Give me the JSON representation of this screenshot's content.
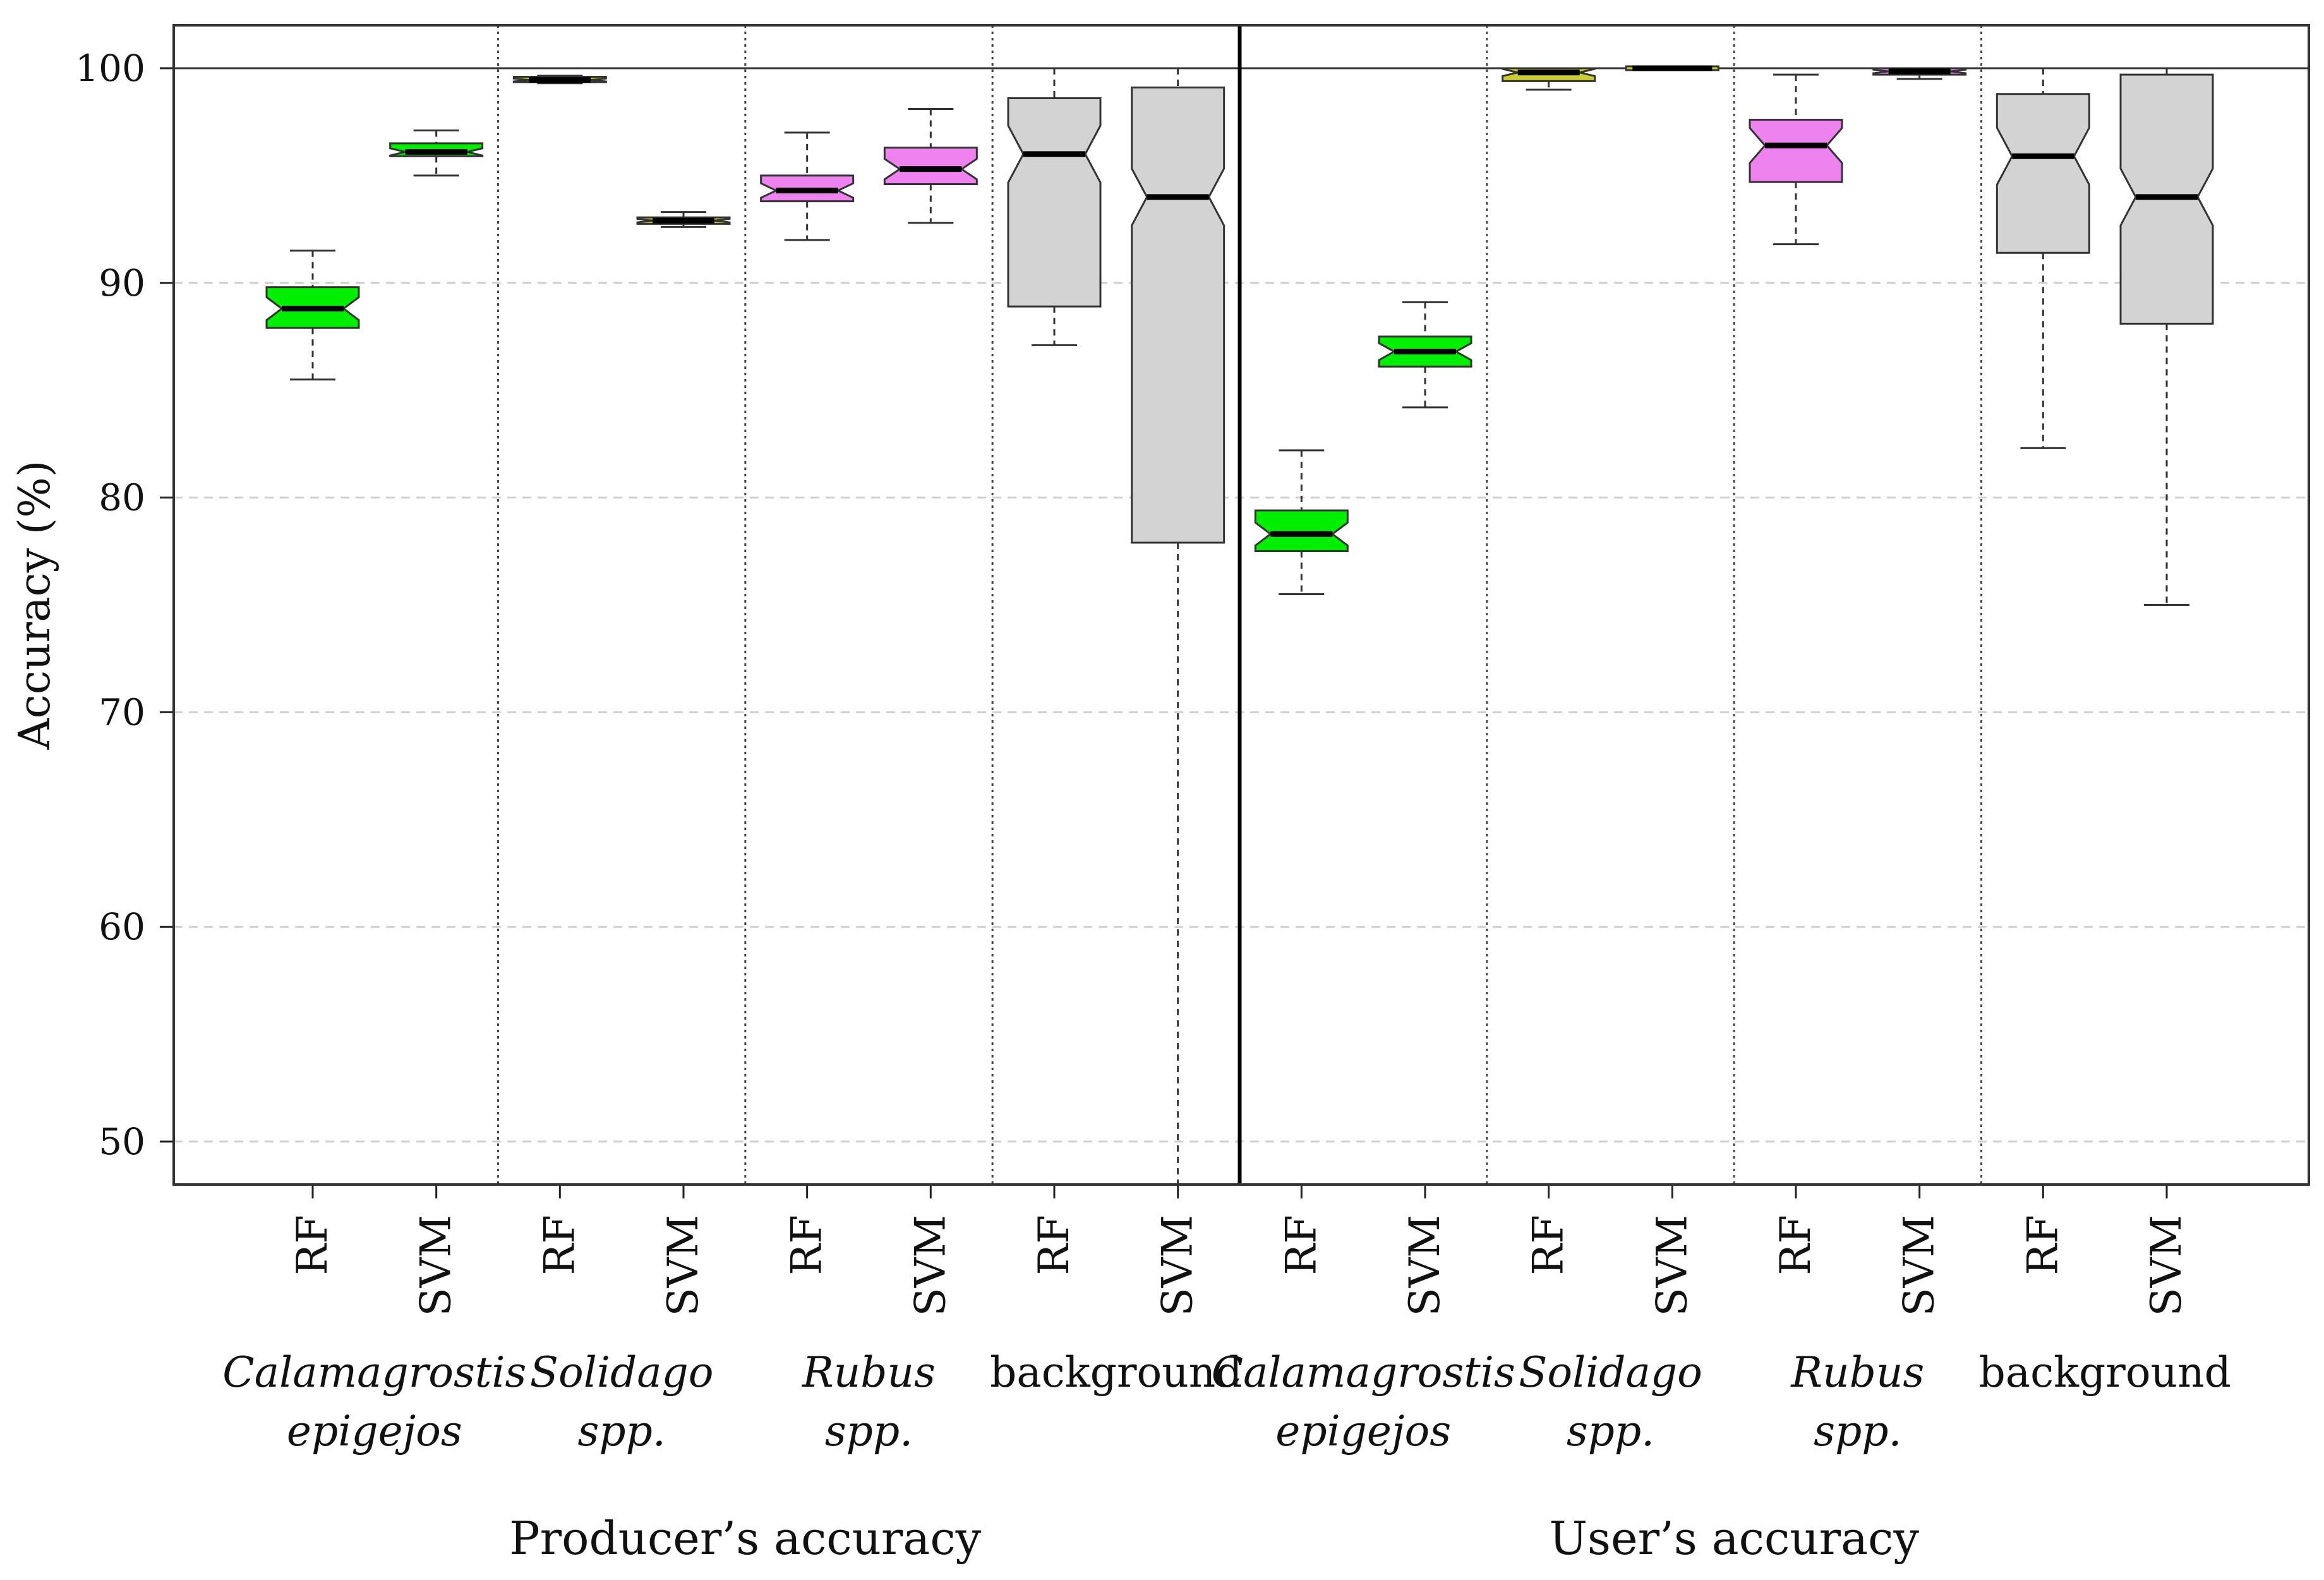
{
  "chart_data": {
    "type": "boxplot",
    "ylabel": "Accuracy (%)",
    "ylim": [
      48,
      102
    ],
    "yticks": [
      50,
      60,
      70,
      80,
      90,
      100
    ],
    "reference_line": 100,
    "grid": "horizontal-dashed",
    "sections": [
      {
        "label": "Producer’s accuracy",
        "groups": [
          {
            "name_lines": [
              "Calamagrostis",
              "epigejos"
            ],
            "italic": true,
            "boxes": [
              {
                "method": "RF",
                "color": "#00ee00",
                "whisker_low": 85.5,
                "q1": 87.9,
                "median": 88.8,
                "q3": 89.8,
                "whisker_high": 91.5
              },
              {
                "method": "SVM",
                "color": "#00ee00",
                "whisker_low": 95.0,
                "q1": 95.9,
                "median": 96.1,
                "q3": 96.5,
                "whisker_high": 97.1
              }
            ]
          },
          {
            "name_lines": [
              "Solidago",
              "spp."
            ],
            "italic": true,
            "boxes": [
              {
                "method": "RF",
                "color": "#cccc33",
                "whisker_low": 99.3,
                "q1": 99.35,
                "median": 99.45,
                "q3": 99.6,
                "whisker_high": 99.65
              },
              {
                "method": "SVM",
                "color": "#cccc33",
                "whisker_low": 92.6,
                "q1": 92.75,
                "median": 92.9,
                "q3": 93.05,
                "whisker_high": 93.3
              }
            ]
          },
          {
            "name_lines": [
              "Rubus",
              "spp."
            ],
            "italic": true,
            "boxes": [
              {
                "method": "RF",
                "color": "#ee82ee",
                "whisker_low": 92.0,
                "q1": 93.8,
                "median": 94.3,
                "q3": 95.0,
                "whisker_high": 97.0
              },
              {
                "method": "SVM",
                "color": "#ee82ee",
                "whisker_low": 92.8,
                "q1": 94.6,
                "median": 95.3,
                "q3": 96.3,
                "whisker_high": 98.1
              }
            ]
          },
          {
            "name_lines": [
              "background"
            ],
            "italic": false,
            "boxes": [
              {
                "method": "RF",
                "color": "#d3d3d3",
                "whisker_low": 87.1,
                "q1": 88.9,
                "median": 96.0,
                "q3": 98.6,
                "whisker_high": 100.0
              },
              {
                "method": "SVM",
                "color": "#d3d3d3",
                "whisker_low": 48.0,
                "q1": 77.9,
                "median": 94.0,
                "q3": 99.1,
                "whisker_high": 100.0
              }
            ]
          }
        ]
      },
      {
        "label": "User’s accuracy",
        "groups": [
          {
            "name_lines": [
              "Calamagrostis",
              "epigejos"
            ],
            "italic": true,
            "boxes": [
              {
                "method": "RF",
                "color": "#00ee00",
                "whisker_low": 75.5,
                "q1": 77.5,
                "median": 78.3,
                "q3": 79.4,
                "whisker_high": 82.2
              },
              {
                "method": "SVM",
                "color": "#00ee00",
                "whisker_low": 84.2,
                "q1": 86.1,
                "median": 86.8,
                "q3": 87.5,
                "whisker_high": 89.1
              }
            ]
          },
          {
            "name_lines": [
              "Solidago",
              "spp."
            ],
            "italic": true,
            "boxes": [
              {
                "method": "RF",
                "color": "#cccc33",
                "whisker_low": 99.0,
                "q1": 99.4,
                "median": 99.8,
                "q3": 100.0,
                "whisker_high": 100.0
              },
              {
                "method": "SVM",
                "color": "#cccc33",
                "whisker_low": 100.0,
                "q1": 100.0,
                "median": 100.0,
                "q3": 100.0,
                "whisker_high": 100.0
              }
            ]
          },
          {
            "name_lines": [
              "Rubus",
              "spp."
            ],
            "italic": true,
            "boxes": [
              {
                "method": "RF",
                "color": "#ee82ee",
                "whisker_low": 91.8,
                "q1": 94.7,
                "median": 96.4,
                "q3": 97.6,
                "whisker_high": 99.7
              },
              {
                "method": "SVM",
                "color": "#ee82ee",
                "whisker_low": 99.5,
                "q1": 99.7,
                "median": 99.85,
                "q3": 100.0,
                "whisker_high": 100.0
              }
            ]
          },
          {
            "name_lines": [
              "background"
            ],
            "italic": false,
            "boxes": [
              {
                "method": "RF",
                "color": "#d3d3d3",
                "whisker_low": 82.3,
                "q1": 91.4,
                "median": 95.9,
                "q3": 98.8,
                "whisker_high": 100.0
              },
              {
                "method": "SVM",
                "color": "#d3d3d3",
                "whisker_low": 75.0,
                "q1": 88.1,
                "median": 94.0,
                "q3": 99.7,
                "whisker_high": 100.0
              }
            ]
          }
        ]
      }
    ]
  }
}
